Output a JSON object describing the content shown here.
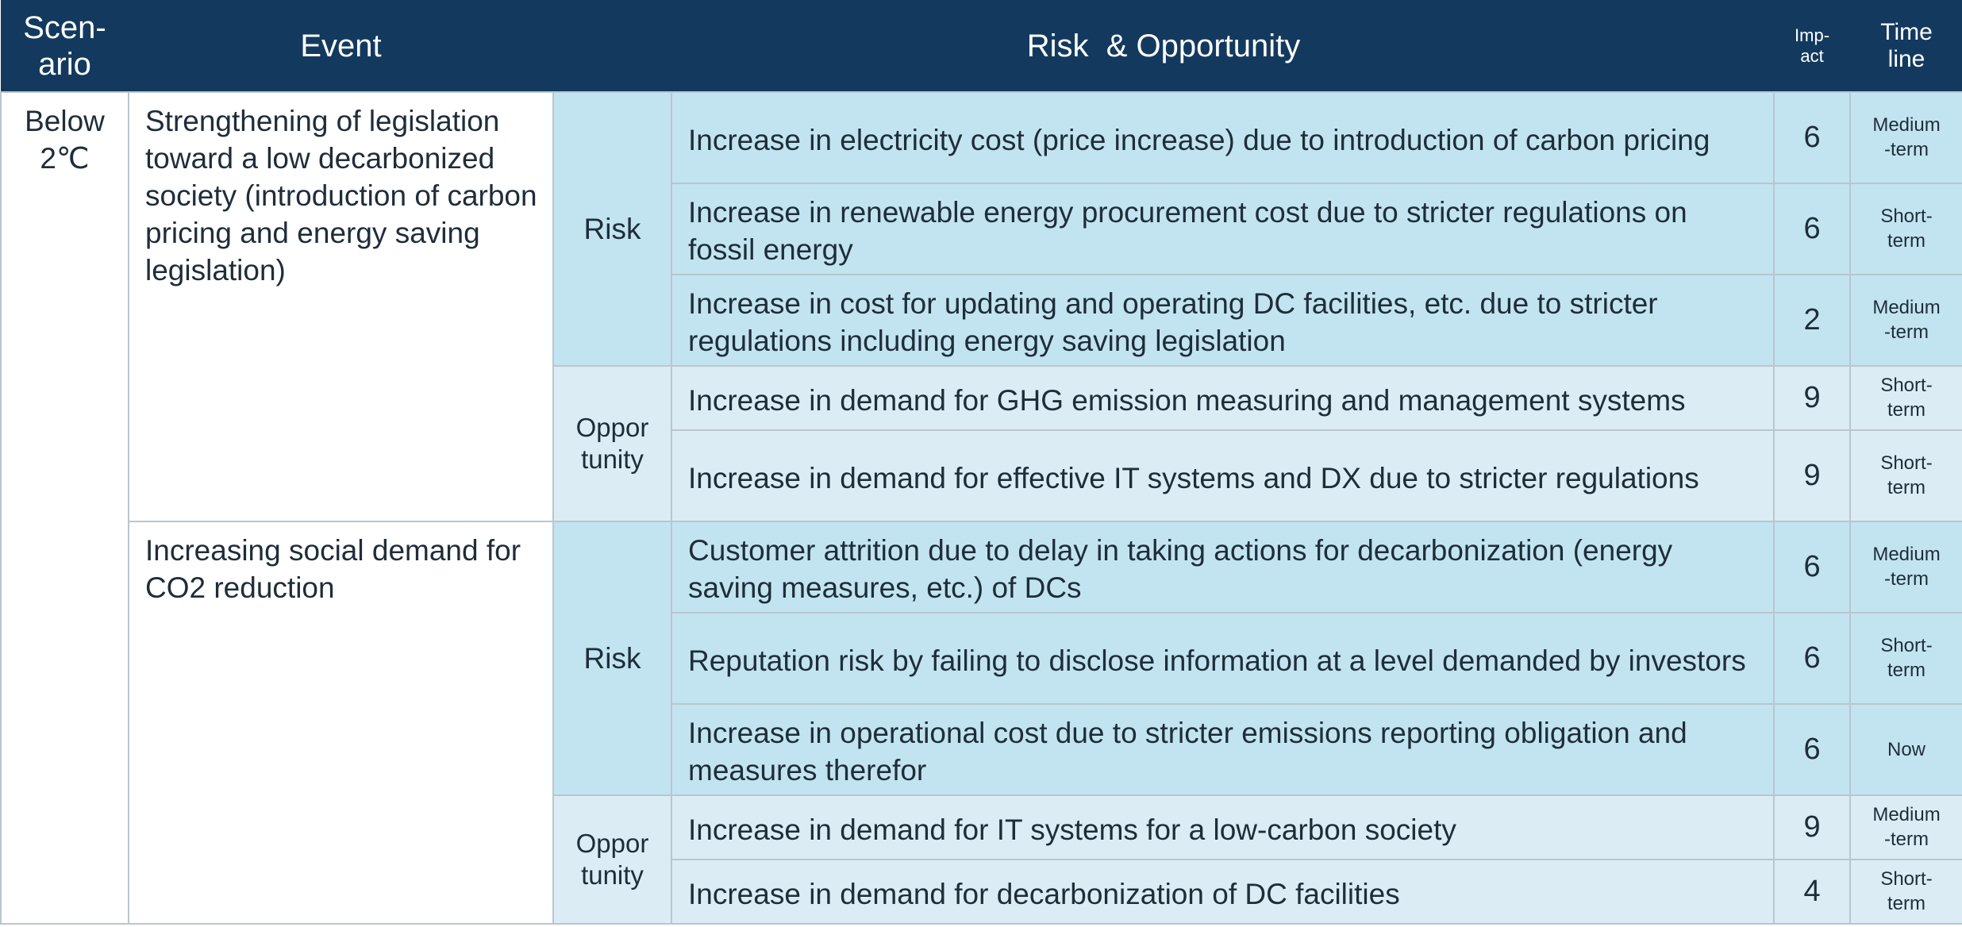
{
  "headers": {
    "scenario": "Scen-\nario",
    "event": "Event",
    "risk_opportunity": "Risk  & Opportunity",
    "impact": "Imp-\nact",
    "timeline": "Time\nline"
  },
  "scenario": "Below\n2℃",
  "events": [
    {
      "label": "Strengthening of legislation toward a low decarbonized society (introduction of carbon pricing and energy saving legislation)",
      "groups": [
        {
          "type": "Risk",
          "items": [
            {
              "desc": "Increase in electricity cost (price increase) due to introduction of carbon pricing",
              "impact": "6",
              "timeline": "Medium\n-term"
            },
            {
              "desc": "Increase in renewable energy procurement cost due to stricter regulations on fossil energy",
              "impact": "6",
              "timeline": "Short-\nterm"
            },
            {
              "desc": "Increase in cost for updating and operating DC facilities, etc. due to stricter regulations including energy saving legislation",
              "impact": "2",
              "timeline": "Medium\n-term"
            }
          ]
        },
        {
          "type": "Oppor\ntunity",
          "items": [
            {
              "desc": "Increase in demand for GHG emission measuring and management systems",
              "impact": "9",
              "timeline": "Short-\nterm"
            },
            {
              "desc": "Increase in demand for effective IT systems and DX due to stricter regulations",
              "impact": "9",
              "timeline": "Short-\nterm"
            }
          ]
        }
      ]
    },
    {
      "label": "Increasing social demand for CO2 reduction",
      "groups": [
        {
          "type": "Risk",
          "items": [
            {
              "desc": "Customer attrition due to delay in taking actions for decarbonization (energy saving measures, etc.) of DCs",
              "impact": "6",
              "timeline": "Medium\n-term"
            },
            {
              "desc": "Reputation risk by failing to disclose information at a level demanded by investors",
              "impact": "6",
              "timeline": "Short-\nterm"
            },
            {
              "desc": "Increase in operational cost due to stricter emissions reporting obligation and measures therefor",
              "impact": "6",
              "timeline": "Now"
            }
          ]
        },
        {
          "type": "Oppor\ntunity",
          "items": [
            {
              "desc": "Increase in demand for IT systems for a low-carbon society",
              "impact": "9",
              "timeline": "Medium\n-term"
            },
            {
              "desc": "Increase in demand for decarbonization of DC facilities",
              "impact": "4",
              "timeline": "Short-\nterm"
            }
          ]
        }
      ]
    }
  ],
  "colors": {
    "header_bg": "#133a5e",
    "risk_bg": "#c2e4f1",
    "opportunity_bg": "#dcecf4",
    "border": "#b9c6cf"
  }
}
